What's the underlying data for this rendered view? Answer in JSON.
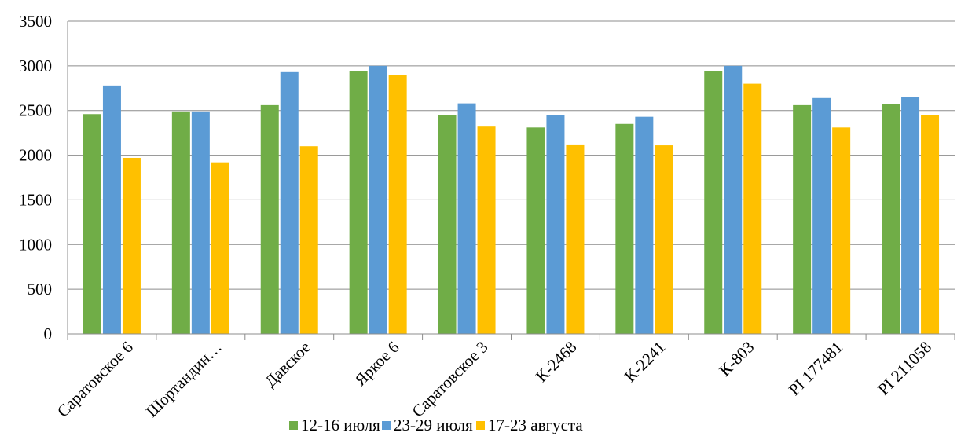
{
  "chart_data": {
    "type": "bar",
    "title": "",
    "xlabel": "",
    "ylabel": "",
    "ylim": [
      0,
      3500
    ],
    "yticks": [
      0,
      500,
      1000,
      1500,
      2000,
      2500,
      3000,
      3500
    ],
    "grid": true,
    "legend_position": "bottom",
    "categories": [
      "Саратовское 6",
      "Шортандин…",
      "Давское",
      "Яркое 6",
      "Саратовское 3",
      "К-2468",
      "К-2241",
      "К-803",
      "PI 177481",
      "PI 211058"
    ],
    "series": [
      {
        "name": "12-16 июля",
        "color": "#70ad47",
        "values": [
          2460,
          2490,
          2560,
          2940,
          2450,
          2310,
          2350,
          2940,
          2560,
          2570
        ]
      },
      {
        "name": "23-29 июля",
        "color": "#5b9bd5",
        "values": [
          2780,
          2490,
          2930,
          3000,
          2580,
          2450,
          2430,
          3000,
          2640,
          2650
        ]
      },
      {
        "name": "17-23 августа",
        "color": "#ffc000",
        "values": [
          1970,
          1920,
          2100,
          2900,
          2320,
          2120,
          2110,
          2800,
          2310,
          2450
        ]
      }
    ]
  }
}
